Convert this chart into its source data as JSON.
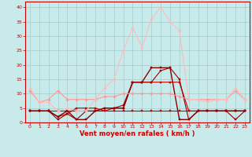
{
  "xlabel": "Vent moyen/en rafales ( km/h )",
  "bg_color": "#c8eaea",
  "grid_color": "#a0cccc",
  "x": [
    0,
    1,
    2,
    3,
    4,
    5,
    6,
    7,
    8,
    9,
    10,
    11,
    12,
    13,
    14,
    15,
    16,
    17,
    18,
    19,
    20,
    21,
    22,
    23
  ],
  "series": [
    {
      "y": [
        4,
        4,
        4,
        4,
        4,
        4,
        4,
        4,
        4,
        4,
        4,
        4,
        4,
        4,
        4,
        4,
        4,
        4,
        4,
        4,
        4,
        4,
        4,
        4
      ],
      "color": "#cc0000",
      "lw": 0.8,
      "marker": "s",
      "ms": 1.8
    },
    {
      "y": [
        4,
        4,
        4,
        2,
        3,
        5,
        5,
        5,
        4,
        5,
        5,
        14,
        14,
        14,
        14,
        14,
        14,
        4,
        4,
        4,
        4,
        4,
        4,
        4
      ],
      "color": "#cc0000",
      "lw": 0.8,
      "marker": "s",
      "ms": 1.8
    },
    {
      "y": [
        4,
        4,
        4,
        2,
        4,
        1,
        1,
        4,
        5,
        5,
        5,
        14,
        14,
        19,
        19,
        19,
        1,
        1,
        4,
        4,
        4,
        4,
        4,
        4
      ],
      "color": "#880000",
      "lw": 1.0,
      "marker": "s",
      "ms": 1.8
    },
    {
      "y": [
        4,
        4,
        4,
        1,
        3,
        1,
        4,
        4,
        5,
        5,
        6,
        14,
        14,
        14,
        18,
        19,
        15,
        1,
        4,
        4,
        4,
        4,
        1,
        4
      ],
      "color": "#990000",
      "lw": 0.8,
      "marker": "s",
      "ms": 1.8
    },
    {
      "y": [
        11,
        7,
        8,
        11,
        8,
        8,
        8,
        8,
        9,
        9,
        10,
        10,
        10,
        10,
        10,
        10,
        9,
        8,
        8,
        8,
        8,
        8,
        11,
        8
      ],
      "color": "#ff9999",
      "lw": 0.8,
      "marker": "D",
      "ms": 1.8
    },
    {
      "y": [
        12,
        7,
        7,
        4,
        5,
        4,
        4,
        8,
        12,
        15,
        25,
        33,
        26,
        36,
        40,
        35,
        32,
        8,
        8,
        7,
        8,
        8,
        12,
        8
      ],
      "color": "#ffbbbb",
      "lw": 0.8,
      "marker": "D",
      "ms": 1.8
    }
  ],
  "ylim": [
    0,
    42
  ],
  "yticks": [
    0,
    5,
    10,
    15,
    20,
    25,
    30,
    35,
    40
  ],
  "xticks": [
    0,
    1,
    2,
    3,
    4,
    5,
    6,
    7,
    8,
    9,
    10,
    11,
    12,
    13,
    14,
    15,
    16,
    17,
    18,
    19,
    20,
    21,
    22,
    23
  ],
  "xlabel_color": "#cc0000",
  "tick_color": "#cc0000",
  "axis_color": "#cc0000",
  "arrows": [
    "↘",
    "→",
    "←",
    "↙",
    "←",
    "↘",
    "↗",
    "→",
    "→",
    "→",
    "↗",
    "→",
    "→",
    "↗",
    "→",
    "→",
    "↓",
    "←",
    "↘",
    "↗",
    "→",
    "↓",
    "←",
    "↘"
  ]
}
